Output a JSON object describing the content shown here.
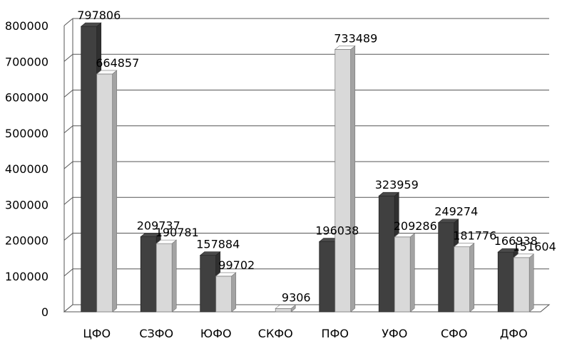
{
  "chart_data": {
    "type": "bar",
    "style": "3d-clustered-column",
    "categories": [
      "ЦФО",
      "СЗФО",
      "ЮФО",
      "СКФО",
      "ПФО",
      "УФО",
      "СФО",
      "ДФО"
    ],
    "series": [
      {
        "values": [
          797806,
          209737,
          157884,
          null,
          196038,
          323959,
          249274,
          166938
        ],
        "color": "#404040"
      },
      {
        "values": [
          664857,
          190781,
          99702,
          9306,
          733489,
          209286,
          181776,
          151604
        ],
        "color": "#d9d9d9"
      }
    ],
    "ylim": [
      0,
      800000
    ],
    "yticks": [
      "0",
      "100000",
      "200000",
      "300000",
      "400000",
      "500000",
      "600000",
      "700000",
      "800000"
    ],
    "grid": true,
    "legend": "none",
    "title": "",
    "xlabel": "",
    "ylabel": ""
  }
}
